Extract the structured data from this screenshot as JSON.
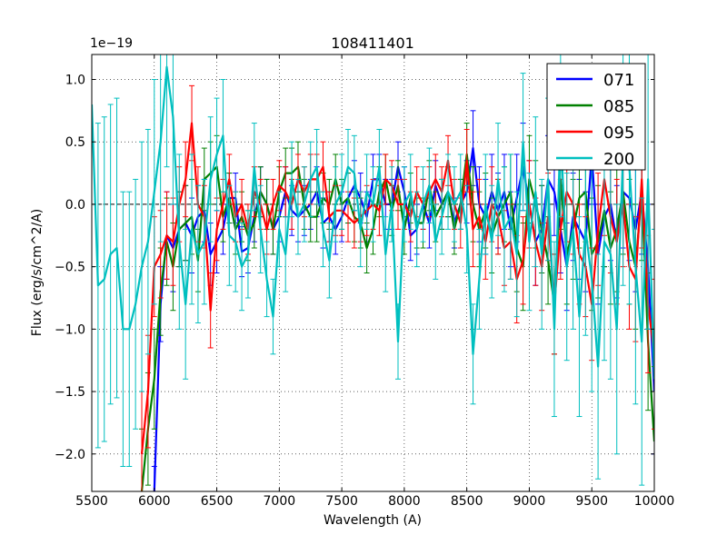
{
  "chart_data": {
    "type": "line",
    "title": "108411401",
    "xlabel": "Wavelength (A)",
    "ylabel": "Flux (erg/s/cm^2/A)",
    "y_multiplier_label": "1e−19",
    "xlim": [
      5500,
      10000
    ],
    "ylim": [
      -2.3,
      1.2
    ],
    "grid": true,
    "legend_position": "top-right",
    "x_ticks": [
      5500,
      6000,
      6500,
      7000,
      7500,
      8000,
      8500,
      9000,
      9500,
      10000
    ],
    "x_tick_labels": [
      "5500",
      "6000",
      "6500",
      "7000",
      "7500",
      "8000",
      "8500",
      "9000",
      "9500",
      "10000"
    ],
    "y_ticks": [
      -2.0,
      -1.5,
      -1.0,
      -0.5,
      0.0,
      0.5,
      1.0
    ],
    "y_tick_labels": [
      "−2.0",
      "−1.5",
      "−1.0",
      "−0.5",
      "0.0",
      "0.5",
      "1.0"
    ],
    "series": [
      {
        "name": "071",
        "color": "#0000ff",
        "x": [
          6000,
          6050,
          6100,
          6150,
          6200,
          6250,
          6300,
          6350,
          6400,
          6450,
          6500,
          6550,
          6600,
          6650,
          6700,
          6750,
          6800,
          6850,
          6900,
          6950,
          7000,
          7050,
          7100,
          7150,
          7200,
          7250,
          7300,
          7350,
          7400,
          7450,
          7500,
          7550,
          7600,
          7650,
          7700,
          7750,
          7800,
          7850,
          7900,
          7950,
          8000,
          8050,
          8100,
          8150,
          8200,
          8250,
          8300,
          8350,
          8400,
          8450,
          8500,
          8550,
          8600,
          8650,
          8700,
          8750,
          8800,
          8850,
          8900,
          8950,
          9000,
          9050,
          9100,
          9150,
          9200,
          9250,
          9300,
          9350,
          9400,
          9450,
          9500,
          9550,
          9600,
          9650,
          9700,
          9750,
          9800,
          9850,
          9900,
          9950,
          10000
        ],
        "y": [
          -2.3,
          -0.8,
          -0.25,
          -0.35,
          -0.2,
          -0.15,
          -0.25,
          -0.1,
          -0.05,
          -0.4,
          -0.3,
          -0.2,
          0.05,
          0.05,
          -0.38,
          -0.35,
          -0.1,
          0.1,
          0.0,
          -0.2,
          -0.1,
          0.1,
          -0.05,
          -0.1,
          -0.05,
          0.0,
          0.1,
          -0.15,
          -0.1,
          -0.2,
          -0.1,
          0.05,
          0.15,
          0.05,
          -0.1,
          0.2,
          0.2,
          0.0,
          0.0,
          0.3,
          0.1,
          -0.25,
          -0.2,
          0.0,
          -0.15,
          0.15,
          0.0,
          0.1,
          -0.15,
          0.0,
          0.1,
          0.45,
          0.0,
          -0.1,
          0.1,
          -0.05,
          0.1,
          -0.2,
          0.05,
          0.3,
          0.0,
          -0.3,
          -0.2,
          0.2,
          0.1,
          -0.2,
          -0.5,
          -0.1,
          -0.2,
          -0.3,
          0.4,
          -0.4,
          -0.1,
          0.0,
          -0.3,
          0.1,
          0.05,
          -0.2,
          0.1,
          -0.5,
          -1.5
        ],
        "err": [
          0.2,
          0.3,
          0.35,
          0.35,
          0.3,
          0.3,
          0.3,
          0.25,
          0.25,
          0.25,
          0.25,
          0.2,
          0.2,
          0.2,
          0.2,
          0.2,
          0.2,
          0.2,
          0.2,
          0.2,
          0.2,
          0.2,
          0.2,
          0.2,
          0.2,
          0.2,
          0.2,
          0.2,
          0.2,
          0.2,
          0.2,
          0.2,
          0.2,
          0.2,
          0.2,
          0.2,
          0.2,
          0.2,
          0.2,
          0.2,
          0.2,
          0.2,
          0.2,
          0.2,
          0.2,
          0.2,
          0.2,
          0.2,
          0.2,
          0.2,
          0.25,
          0.3,
          0.3,
          0.3,
          0.3,
          0.3,
          0.3,
          0.3,
          0.35,
          0.35,
          0.35,
          0.35,
          0.35,
          0.35,
          0.35,
          0.35,
          0.35,
          0.35,
          0.4,
          0.4,
          0.4,
          0.4,
          0.4,
          0.45,
          0.45,
          0.45,
          0.5,
          0.5,
          0.5,
          0.5,
          0.5
        ]
      },
      {
        "name": "085",
        "color": "#008000",
        "x": [
          5900,
          5950,
          6000,
          6050,
          6100,
          6150,
          6200,
          6250,
          6300,
          6350,
          6400,
          6450,
          6500,
          6550,
          6600,
          6650,
          6700,
          6750,
          6800,
          6850,
          6900,
          6950,
          7000,
          7050,
          7100,
          7150,
          7200,
          7250,
          7300,
          7350,
          7400,
          7450,
          7500,
          7550,
          7600,
          7650,
          7700,
          7750,
          7800,
          7850,
          7900,
          7950,
          8000,
          8050,
          8100,
          8150,
          8200,
          8250,
          8300,
          8350,
          8400,
          8450,
          8500,
          8550,
          8600,
          8650,
          8700,
          8750,
          8800,
          8850,
          8900,
          8950,
          9000,
          9050,
          9100,
          9150,
          9200,
          9250,
          9300,
          9350,
          9400,
          9450,
          9500,
          9550,
          9600,
          9650,
          9700,
          9750,
          9800,
          9850,
          9900,
          9950,
          10000
        ],
        "y": [
          -2.3,
          -1.8,
          -1.4,
          -0.7,
          -0.3,
          -0.5,
          -0.2,
          -0.15,
          -0.1,
          -0.45,
          0.2,
          0.25,
          0.3,
          -0.1,
          0.05,
          -0.2,
          -0.1,
          -0.25,
          -0.15,
          0.1,
          0.0,
          -0.2,
          0.1,
          0.25,
          0.25,
          0.3,
          0.0,
          -0.1,
          -0.1,
          0.05,
          0.0,
          0.2,
          0.0,
          0.05,
          -0.1,
          -0.15,
          -0.35,
          -0.2,
          0.1,
          0.2,
          -0.05,
          0.15,
          -0.2,
          0.05,
          -0.15,
          -0.15,
          0.15,
          -0.1,
          0.0,
          0.1,
          -0.2,
          0.0,
          0.4,
          0.0,
          -0.2,
          -0.05,
          -0.25,
          -0.1,
          0.0,
          0.1,
          -0.35,
          -0.5,
          0.2,
          0.0,
          -0.2,
          -0.45,
          -0.8,
          0.2,
          -0.4,
          -0.2,
          0.05,
          0.1,
          -0.4,
          -0.3,
          -0.05,
          -0.35,
          -0.2,
          0.1,
          -0.3,
          -0.5,
          0.1,
          -1.1,
          -1.9
        ],
        "err": [
          0.5,
          0.45,
          0.4,
          0.35,
          0.35,
          0.35,
          0.3,
          0.3,
          0.3,
          0.25,
          0.25,
          0.25,
          0.25,
          0.2,
          0.2,
          0.2,
          0.2,
          0.2,
          0.2,
          0.2,
          0.2,
          0.2,
          0.2,
          0.2,
          0.2,
          0.2,
          0.2,
          0.2,
          0.2,
          0.2,
          0.2,
          0.2,
          0.2,
          0.2,
          0.2,
          0.2,
          0.2,
          0.2,
          0.2,
          0.2,
          0.2,
          0.2,
          0.2,
          0.2,
          0.2,
          0.2,
          0.2,
          0.2,
          0.2,
          0.2,
          0.2,
          0.2,
          0.25,
          0.3,
          0.3,
          0.3,
          0.3,
          0.3,
          0.3,
          0.3,
          0.35,
          0.35,
          0.35,
          0.35,
          0.35,
          0.35,
          0.4,
          0.4,
          0.4,
          0.4,
          0.4,
          0.4,
          0.45,
          0.45,
          0.45,
          0.45,
          0.5,
          0.5,
          0.5,
          0.5,
          0.55,
          0.55,
          0.6
        ]
      },
      {
        "name": "095",
        "color": "#ff0000",
        "x": [
          5900,
          5950,
          6000,
          6050,
          6100,
          6150,
          6200,
          6250,
          6300,
          6350,
          6400,
          6450,
          6500,
          6550,
          6600,
          6650,
          6700,
          6750,
          6800,
          6850,
          6900,
          6950,
          7000,
          7050,
          7100,
          7150,
          7200,
          7250,
          7300,
          7350,
          7400,
          7450,
          7500,
          7550,
          7600,
          7650,
          7700,
          7750,
          7800,
          7850,
          7900,
          7950,
          8000,
          8050,
          8100,
          8150,
          8200,
          8250,
          8300,
          8350,
          8400,
          8450,
          8500,
          8550,
          8600,
          8650,
          8700,
          8750,
          8800,
          8850,
          8900,
          8950,
          9000,
          9050,
          9100,
          9150,
          9200,
          9250,
          9300,
          9350,
          9400,
          9450,
          9500,
          9550,
          9600,
          9650,
          9700,
          9750,
          9800,
          9850,
          9900,
          9950,
          10000
        ],
        "y": [
          -2.0,
          -1.5,
          -0.5,
          -0.4,
          -0.25,
          -0.3,
          0.0,
          0.2,
          0.65,
          0.0,
          -0.1,
          -0.85,
          -0.2,
          0.0,
          0.2,
          -0.1,
          0.0,
          -0.2,
          0.1,
          0.0,
          -0.2,
          0.0,
          0.15,
          0.1,
          0.0,
          0.2,
          0.1,
          0.2,
          0.2,
          0.3,
          -0.1,
          -0.05,
          -0.05,
          -0.1,
          -0.15,
          -0.1,
          -0.05,
          0.0,
          -0.05,
          0.2,
          0.15,
          0.0,
          0.0,
          -0.1,
          0.1,
          0.0,
          0.1,
          0.2,
          0.1,
          0.35,
          0.0,
          -0.15,
          0.35,
          -0.2,
          -0.1,
          -0.3,
          0.0,
          -0.1,
          -0.35,
          -0.3,
          -0.6,
          -0.45,
          0.0,
          -0.3,
          -0.5,
          -0.1,
          -0.8,
          -0.2,
          0.1,
          0.0,
          -0.4,
          -0.5,
          -0.8,
          -0.2,
          0.2,
          -0.1,
          -0.3,
          0.0,
          -0.5,
          -0.6,
          0.2,
          -0.8,
          -1.2
        ],
        "err": [
          0.5,
          0.45,
          0.4,
          0.35,
          0.35,
          0.35,
          0.3,
          0.3,
          0.3,
          0.3,
          0.25,
          0.3,
          0.25,
          0.2,
          0.2,
          0.2,
          0.2,
          0.2,
          0.2,
          0.2,
          0.2,
          0.2,
          0.2,
          0.2,
          0.2,
          0.2,
          0.2,
          0.2,
          0.2,
          0.2,
          0.2,
          0.2,
          0.2,
          0.2,
          0.2,
          0.2,
          0.2,
          0.2,
          0.2,
          0.2,
          0.2,
          0.2,
          0.2,
          0.2,
          0.2,
          0.2,
          0.2,
          0.2,
          0.2,
          0.2,
          0.2,
          0.2,
          0.25,
          0.3,
          0.3,
          0.3,
          0.3,
          0.3,
          0.3,
          0.3,
          0.35,
          0.35,
          0.35,
          0.35,
          0.35,
          0.35,
          0.4,
          0.4,
          0.4,
          0.4,
          0.4,
          0.4,
          0.45,
          0.45,
          0.45,
          0.45,
          0.5,
          0.5,
          0.5,
          0.5,
          0.55,
          0.55,
          0.6
        ]
      },
      {
        "name": "200",
        "color": "#00bfbf",
        "x": [
          5500,
          5550,
          5600,
          5650,
          5700,
          5750,
          5800,
          5850,
          5900,
          5950,
          6000,
          6050,
          6100,
          6150,
          6200,
          6250,
          6300,
          6350,
          6400,
          6450,
          6500,
          6550,
          6600,
          6650,
          6700,
          6750,
          6800,
          6850,
          6900,
          6950,
          7000,
          7050,
          7100,
          7150,
          7200,
          7250,
          7300,
          7350,
          7400,
          7450,
          7500,
          7550,
          7600,
          7650,
          7700,
          7750,
          7800,
          7850,
          7900,
          7950,
          8000,
          8050,
          8100,
          8150,
          8200,
          8250,
          8300,
          8350,
          8400,
          8450,
          8500,
          8550,
          8600,
          8650,
          8700,
          8750,
          8800,
          8850,
          8900,
          8950,
          9000,
          9050,
          9100,
          9150,
          9200,
          9250,
          9300,
          9350,
          9400,
          9450,
          9500,
          9550,
          9600,
          9650,
          9700,
          9750,
          9800,
          9850,
          9900,
          9950,
          10000
        ],
        "y": [
          0.8,
          -0.65,
          -0.6,
          -0.4,
          -0.35,
          -1.0,
          -1.0,
          -0.8,
          -0.5,
          -0.3,
          0.1,
          0.5,
          1.1,
          0.7,
          -0.3,
          -0.8,
          -0.2,
          -0.4,
          -0.3,
          0.2,
          0.4,
          0.55,
          -0.25,
          -0.3,
          -0.5,
          -0.4,
          0.3,
          -0.2,
          -0.6,
          -0.9,
          -0.2,
          -0.4,
          0.2,
          -0.1,
          0.0,
          0.2,
          0.3,
          -0.2,
          -0.45,
          0.0,
          0.1,
          0.3,
          0.25,
          -0.2,
          0.1,
          0.0,
          0.3,
          -0.4,
          0.0,
          -1.1,
          0.0,
          0.1,
          -0.2,
          0.0,
          0.15,
          -0.3,
          -0.1,
          0.1,
          0.0,
          0.1,
          -0.2,
          -1.2,
          -0.6,
          0.0,
          -0.3,
          0.2,
          -0.2,
          -0.1,
          -0.4,
          0.5,
          -0.3,
          0.1,
          -0.4,
          0.2,
          -1.0,
          0.6,
          -0.5,
          -0.2,
          -0.9,
          -0.2,
          -0.6,
          -1.3,
          -0.3,
          -0.4,
          -1.0,
          0.4,
          0.3,
          -0.5,
          -1.1,
          0.2,
          -1.4
        ],
        "err": [
          1.3,
          1.3,
          1.3,
          1.2,
          1.2,
          1.1,
          1.1,
          1.0,
          1.0,
          0.9,
          0.9,
          0.8,
          0.8,
          0.7,
          0.7,
          0.6,
          0.6,
          0.55,
          0.5,
          0.5,
          0.45,
          0.45,
          0.4,
          0.4,
          0.35,
          0.35,
          0.35,
          0.35,
          0.3,
          0.3,
          0.3,
          0.3,
          0.3,
          0.3,
          0.3,
          0.3,
          0.3,
          0.3,
          0.3,
          0.3,
          0.3,
          0.3,
          0.3,
          0.3,
          0.3,
          0.3,
          0.3,
          0.3,
          0.3,
          0.3,
          0.3,
          0.3,
          0.3,
          0.3,
          0.3,
          0.3,
          0.3,
          0.3,
          0.3,
          0.3,
          0.35,
          0.4,
          0.4,
          0.4,
          0.45,
          0.45,
          0.5,
          0.5,
          0.5,
          0.55,
          0.55,
          0.6,
          0.6,
          0.65,
          0.7,
          0.7,
          0.75,
          0.8,
          0.8,
          0.85,
          0.9,
          0.9,
          0.95,
          1.0,
          1.0,
          1.05,
          1.1,
          1.1,
          1.15,
          1.2,
          1.2
        ]
      }
    ]
  }
}
